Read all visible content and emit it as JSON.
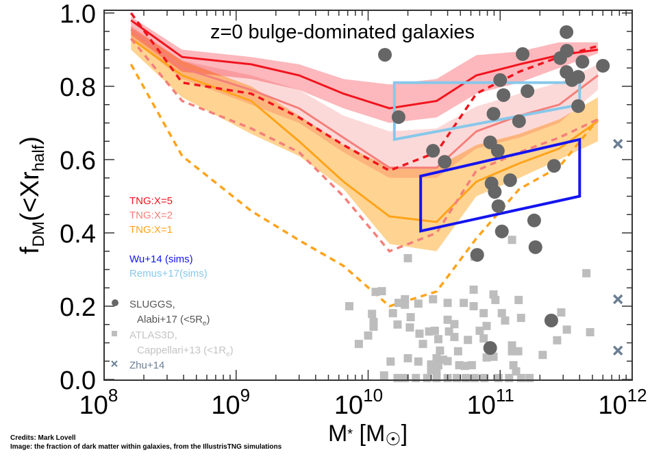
{
  "credits": {
    "line1": "Credits: Mark Lovell",
    "line2": "Image: the fraction of dark matter within galaxies, from the IllustrisTNG simulations"
  },
  "chart_data": {
    "type": "line",
    "title": "z=0 bulge-dominated galaxies",
    "xlabel": {
      "main": "M",
      "sub": "*",
      "mid": " [M",
      "sun": "☉",
      "end": "]"
    },
    "ylabel": {
      "main": "f",
      "sub": "DM",
      "mid": "(<Xr",
      "sub2": "half",
      "end": ")"
    },
    "xscale": "log",
    "xlim": [
      100000000.0,
      1000000000000.0
    ],
    "ylim": [
      0.0,
      1.0
    ],
    "xticks": [
      {
        "base": "10",
        "exp": "8"
      },
      {
        "base": "10",
        "exp": "9"
      },
      {
        "base": "10",
        "exp": "10"
      },
      {
        "base": "10",
        "exp": "11"
      },
      {
        "base": "10",
        "exp": "12"
      }
    ],
    "yticks": [
      "0.0",
      "0.2",
      "0.4",
      "0.6",
      "0.8",
      "1.0"
    ],
    "ytick_values": [
      0.0,
      0.2,
      0.4,
      0.6,
      0.8,
      1.0
    ],
    "grid": false,
    "legend_position": "left",
    "tng_masses": [
      160000000.0,
      390000000.0,
      1300000000.0,
      3000000000.0,
      6500000000.0,
      14500000000.0,
      33000000000.0,
      66000000000.0,
      140000000000.0,
      280000000000.0,
      550000000000.0
    ],
    "series": [
      {
        "name": "TNG:X=1",
        "color": "#ffa31a",
        "band_color": "#ffd28c",
        "median": [
          0.93,
          0.83,
          0.76,
          0.65,
          0.54,
          0.445,
          0.43,
          0.54,
          0.59,
          0.63,
          0.705
        ],
        "band_high": [
          0.96,
          0.87,
          0.8,
          0.72,
          0.64,
          0.58,
          0.58,
          0.64,
          0.67,
          0.71,
          0.77
        ],
        "band_low": [
          0.9,
          0.77,
          0.67,
          0.61,
          0.52,
          0.37,
          0.35,
          0.5,
          0.55,
          0.6,
          0.65
        ],
        "dashed": [
          0.86,
          0.61,
          0.46,
          0.38,
          0.31,
          0.2,
          0.24,
          0.385,
          0.52,
          0.58,
          0.71
        ]
      },
      {
        "name": "TNG:X=2",
        "color": "#f47f7a",
        "band_color": "#fbc9c9",
        "median": [
          0.955,
          0.85,
          0.79,
          0.74,
          0.66,
          0.578,
          0.578,
          0.677,
          0.72,
          0.75,
          0.83
        ],
        "band_high": [
          0.965,
          0.87,
          0.83,
          0.79,
          0.72,
          0.677,
          0.685,
          0.745,
          0.78,
          0.81,
          0.86
        ],
        "band_low": [
          0.93,
          0.82,
          0.75,
          0.7,
          0.62,
          0.55,
          0.55,
          0.63,
          0.66,
          0.7,
          0.79
        ],
        "dashed": [
          0.93,
          0.76,
          0.685,
          0.62,
          0.5,
          0.35,
          0.4,
          0.57,
          0.62,
          0.66,
          0.71
        ]
      },
      {
        "name": "TNG:X=5",
        "color": "#f0141e",
        "band_color": "#fba0a6",
        "median": [
          0.98,
          0.88,
          0.86,
          0.83,
          0.78,
          0.74,
          0.76,
          0.83,
          0.86,
          0.885,
          0.9
        ],
        "band_high": [
          0.99,
          0.9,
          0.88,
          0.86,
          0.82,
          0.805,
          0.82,
          0.885,
          0.895,
          0.92,
          0.92
        ],
        "band_low": [
          0.94,
          0.84,
          0.82,
          0.79,
          0.74,
          0.7,
          0.715,
          0.78,
          0.81,
          0.85,
          0.89
        ],
        "dashed": [
          1.0,
          0.81,
          0.78,
          0.715,
          0.64,
          0.57,
          0.62,
          0.78,
          0.84,
          0.88,
          0.91
        ]
      }
    ],
    "boxes": [
      {
        "name": "Wu+14 (sims)",
        "color": "#1414f0",
        "corners": [
          [
            25000000000.0,
            0.555
          ],
          [
            400000000000.0,
            0.655
          ],
          [
            400000000000.0,
            0.5
          ],
          [
            25000000000.0,
            0.405
          ]
        ]
      },
      {
        "name": "Remus+17(sims)",
        "color": "#87c8ea",
        "corners": [
          [
            15800000000.0,
            0.81
          ],
          [
            400000000000.0,
            0.81
          ],
          [
            400000000000.0,
            0.75
          ],
          [
            15800000000.0,
            0.655
          ]
        ]
      }
    ],
    "sluggs": {
      "name1": "SLUGGS,",
      "name2": "Alabi+17 (<5R",
      "name2_sub": "e",
      "name2_end": ")",
      "color": "#666666",
      "points": [
        [
          13400000000.0,
          0.886
        ],
        [
          318000000000.0,
          0.948
        ],
        [
          148000000000.0,
          0.888
        ],
        [
          320000000000.0,
          0.897
        ],
        [
          285000000000.0,
          0.877
        ],
        [
          420000000000.0,
          0.867
        ],
        [
          600000000000.0,
          0.856
        ],
        [
          318000000000.0,
          0.839
        ],
        [
          350000000000.0,
          0.817
        ],
        [
          390000000000.0,
          0.826
        ],
        [
          100000000000.0,
          0.817
        ],
        [
          106000000000.0,
          0.776
        ],
        [
          161000000000.0,
          0.787
        ],
        [
          17000000000.0,
          0.716
        ],
        [
          390000000000.0,
          0.746
        ],
        [
          89000000000.0,
          0.725
        ],
        [
          139000000000.0,
          0.705
        ],
        [
          31000000000.0,
          0.624
        ],
        [
          84000000000.0,
          0.647
        ],
        [
          96000000000.0,
          0.624
        ],
        [
          38000000000.0,
          0.594
        ],
        [
          256000000000.0,
          0.583
        ],
        [
          86000000000.0,
          0.535
        ],
        [
          119000000000.0,
          0.544
        ],
        [
          91000000000.0,
          0.512
        ],
        [
          97000000000.0,
          0.473
        ],
        [
          181000000000.0,
          0.434
        ],
        [
          103000000000.0,
          0.404
        ],
        [
          185000000000.0,
          0.361
        ],
        [
          67000000000.0,
          0.34
        ],
        [
          244000000000.0,
          0.161
        ],
        [
          84000000000.0,
          0.086
        ]
      ]
    },
    "atlas3d": {
      "name1": "ATLAS3D,",
      "name2": "Cappellari+13 (<1R",
      "name2_sub": "e",
      "name2_end": ")",
      "color": "#bdbdbd",
      "points": [
        [
          123000000000.0,
          0.381
        ],
        [
          20000000000.0,
          0.331
        ],
        [
          64000000000.0,
          0.335
        ],
        [
          450000000000.0,
          0.29
        ],
        [
          11400000000.0,
          0.239
        ],
        [
          12700000000.0,
          0.241
        ],
        [
          63000000000.0,
          0.245
        ],
        [
          7200000000.0,
          0.2
        ],
        [
          17000000000.0,
          0.209
        ],
        [
          19000000000.0,
          0.219
        ],
        [
          19000000000.0,
          0.204
        ],
        [
          24000000000.0,
          0.207
        ],
        [
          31000000000.0,
          0.219
        ],
        [
          40000000000.0,
          0.209
        ],
        [
          53000000000.0,
          0.209
        ],
        [
          89000000000.0,
          0.232
        ],
        [
          92000000000.0,
          0.217
        ],
        [
          138000000000.0,
          0.217
        ],
        [
          63000000000.0,
          0.2
        ],
        [
          290000000000.0,
          0.183
        ],
        [
          15400000000.0,
          0.181
        ],
        [
          10700000000.0,
          0.179
        ],
        [
          75000000000.0,
          0.181
        ],
        [
          103000000000.0,
          0.181
        ],
        [
          21000000000.0,
          0.17
        ],
        [
          144000000000.0,
          0.168
        ],
        [
          109000000000.0,
          0.161
        ],
        [
          11000000000.0,
          0.157
        ],
        [
          16700000000.0,
          0.15
        ],
        [
          40000000000.0,
          0.163
        ],
        [
          45000000000.0,
          0.151
        ],
        [
          79000000000.0,
          0.146
        ],
        [
          20700000000.0,
          0.142
        ],
        [
          11000000000.0,
          0.144
        ],
        [
          320000000000.0,
          0.136
        ],
        [
          480000000000.0,
          0.129
        ],
        [
          24500000000.0,
          0.125
        ],
        [
          29000000000.0,
          0.131
        ],
        [
          32000000000.0,
          0.133
        ],
        [
          41000000000.0,
          0.131
        ],
        [
          70000000000.0,
          0.133
        ],
        [
          10000000000.0,
          0.12
        ],
        [
          34000000000.0,
          0.11
        ],
        [
          45000000000.0,
          0.116
        ],
        [
          57000000000.0,
          0.108
        ],
        [
          75000000000.0,
          0.112
        ],
        [
          270000000000.0,
          0.107
        ],
        [
          8500000000.0,
          0.097
        ],
        [
          26000000000.0,
          0.097
        ],
        [
          123000000000.0,
          0.093
        ],
        [
          35000000000.0,
          0.079
        ],
        [
          48000000000.0,
          0.077
        ],
        [
          123000000000.0,
          0.077
        ],
        [
          137000000000.0,
          0.077
        ],
        [
          210000000000.0,
          0.067
        ],
        [
          79000000000.0,
          0.06
        ],
        [
          89000000000.0,
          0.062
        ],
        [
          20000000000.0,
          0.058
        ],
        [
          24000000000.0,
          0.049
        ],
        [
          14800000000.0,
          0.049
        ],
        [
          33000000000.0,
          0.058
        ],
        [
          37000000000.0,
          0.054
        ],
        [
          40000000000.0,
          0.05
        ],
        [
          30000000000.0,
          0.041
        ],
        [
          34000000000.0,
          0.039
        ],
        [
          49000000000.0,
          0.039
        ],
        [
          54000000000.0,
          0.037
        ],
        [
          61000000000.0,
          0.039
        ],
        [
          126000000000.0,
          0.039
        ],
        [
          132000000000.0,
          0.022
        ],
        [
          13200000000.0,
          0.011
        ],
        [
          30000000000.0,
          0.026
        ],
        [
          33000000000.0,
          0.021
        ],
        [
          16700000000.0,
          0.004
        ],
        [
          19000000000.0,
          0.004
        ],
        [
          23000000000.0,
          0.004
        ],
        [
          28000000000.0,
          0.004
        ],
        [
          33000000000.0,
          0.004
        ],
        [
          40000000000.0,
          0.004
        ],
        [
          47000000000.0,
          0.004
        ],
        [
          55000000000.0,
          0.004
        ],
        [
          64000000000.0,
          0.004
        ],
        [
          76000000000.0,
          0.004
        ],
        [
          97000000000.0,
          0.004
        ],
        [
          117000000000.0,
          0.004
        ],
        [
          144000000000.0,
          0.004
        ],
        [
          167000000000.0,
          0.004
        ]
      ]
    },
    "zhu": {
      "name": "Zhu+14",
      "color": "#6b7f94",
      "points": [
        [
          780000000000.0,
          0.643
        ],
        [
          780000000000.0,
          0.219
        ],
        [
          780000000000.0,
          0.079
        ]
      ]
    }
  }
}
